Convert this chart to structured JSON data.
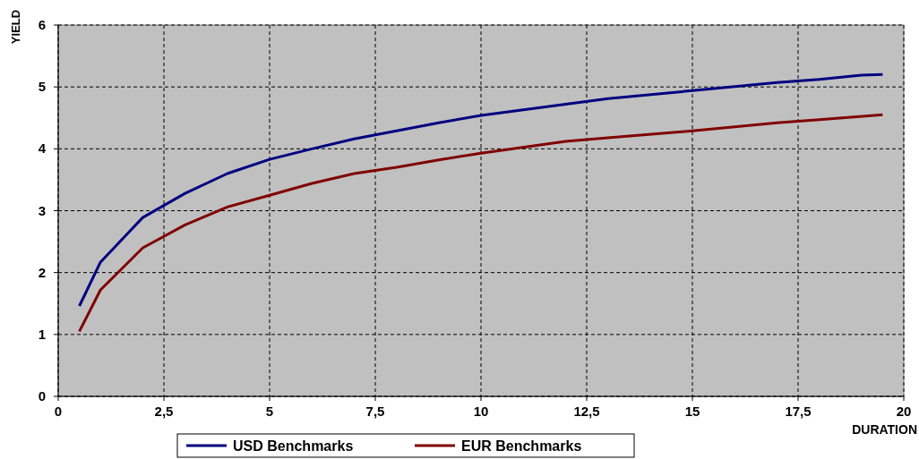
{
  "chart_data": {
    "type": "line",
    "xlabel": "DURATION",
    "ylabel": "YIELD",
    "xlim": [
      0,
      20
    ],
    "ylim": [
      0,
      6
    ],
    "xticks": [
      0,
      {
        "value": 2.5,
        "label": "2,5"
      },
      5,
      {
        "value": 7.5,
        "label": "7,5"
      },
      10,
      {
        "value": 12.5,
        "label": "12,5"
      },
      15,
      {
        "value": 17.5,
        "label": "17,5"
      },
      20
    ],
    "yticks": [
      0,
      1,
      2,
      3,
      4,
      5,
      6
    ],
    "grid": true,
    "legend": "bottom",
    "line_style": "solid",
    "series": [
      {
        "name": "USD Benchmarks",
        "color": "#000080",
        "x": [
          0.5,
          1,
          2,
          3,
          4,
          5,
          6,
          7,
          8,
          9,
          10,
          12,
          13,
          15,
          17,
          18,
          19,
          19.5
        ],
        "values": [
          1.46,
          2.17,
          2.89,
          3.28,
          3.6,
          3.83,
          4.0,
          4.16,
          4.29,
          4.42,
          4.54,
          4.72,
          4.81,
          4.94,
          5.07,
          5.12,
          5.19,
          5.2
        ]
      },
      {
        "name": "EUR Benchmarks",
        "color": "#800000",
        "x": [
          0.5,
          1,
          2,
          3,
          4,
          5,
          6,
          7,
          8,
          9,
          10,
          12,
          13,
          15,
          17,
          18,
          19.5
        ],
        "values": [
          1.05,
          1.72,
          2.4,
          2.77,
          3.06,
          3.25,
          3.44,
          3.6,
          3.7,
          3.82,
          3.93,
          4.12,
          4.18,
          4.29,
          4.42,
          4.47,
          4.55
        ]
      }
    ]
  }
}
